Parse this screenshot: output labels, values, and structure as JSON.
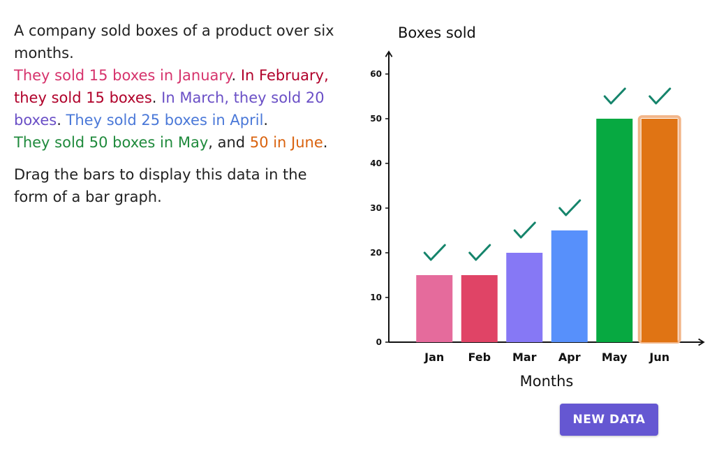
{
  "prompt": {
    "intro": "A company sold boxes of a product over six months.",
    "jan_text": "They sold 15 boxes in January",
    "p1": ". ",
    "feb_text": "In February, they sold 15 boxes",
    "p2": ". ",
    "mar_text": "In March, they sold 20 boxes",
    "p3": ". ",
    "apr_text": "They sold 25 boxes in April",
    "p4": ".",
    "may_text": "They sold 50 boxes in May",
    "and_text": ", and ",
    "jun_text": "50 in June",
    "p5": ".",
    "instruction": "Drag the bars to display this data in the form of a bar graph."
  },
  "chart_data": {
    "type": "bar",
    "ylabel": "Boxes sold",
    "xlabel": "Months",
    "categories": [
      "Jan",
      "Feb",
      "Mar",
      "Apr",
      "May",
      "Jun"
    ],
    "values": [
      15,
      15,
      20,
      25,
      50,
      50
    ],
    "colors": [
      "#e56b9c",
      "#e04466",
      "#8678f5",
      "#5790fb",
      "#07a941",
      "#e07414"
    ],
    "ylim": [
      0,
      60
    ],
    "yticks": [
      "0",
      "10",
      "20",
      "30",
      "40",
      "50",
      "60"
    ],
    "checked": [
      true,
      true,
      true,
      true,
      true,
      true
    ],
    "selected_category": "Jun",
    "check_color": "#15846b",
    "grid": false
  },
  "button": {
    "label": "NEW DATA",
    "color": "#6557d2"
  }
}
